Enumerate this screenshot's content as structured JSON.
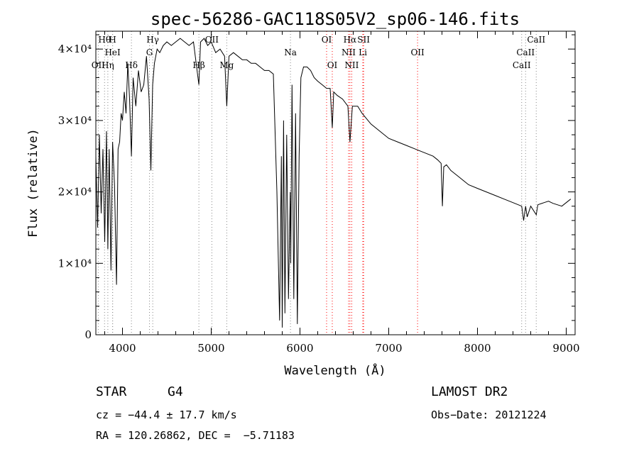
{
  "chart_data": {
    "type": "line",
    "title": "spec-56286-GAC118S05V2_sp06-146.fits",
    "xlabel": "Wavelength (Å)",
    "ylabel": "Flux (relative)",
    "xlim": [
      3700,
      9100
    ],
    "ylim": [
      0,
      42500
    ],
    "xticks": [
      4000,
      5000,
      6000,
      7000,
      8000,
      9000
    ],
    "yticks": [
      {
        "value": 0,
        "label": "0"
      },
      {
        "value": 10000,
        "label": "1×10⁴"
      },
      {
        "value": 20000,
        "label": "2×10⁴"
      },
      {
        "value": 30000,
        "label": "3×10⁴"
      },
      {
        "value": 40000,
        "label": "4×10⁴"
      }
    ],
    "grid": false,
    "series": [
      {
        "x": [
          3700,
          3720,
          3740,
          3760,
          3780,
          3800,
          3820,
          3835,
          3850,
          3870,
          3889,
          3910,
          3933,
          3950,
          3968,
          3985,
          4000,
          4020,
          4040,
          4060,
          4080,
          4101,
          4120,
          4150,
          4180,
          4210,
          4240,
          4270,
          4300,
          4320,
          4340,
          4360,
          4390,
          4420,
          4460,
          4500,
          4550,
          4600,
          4650,
          4700,
          4750,
          4800,
          4861,
          4880,
          4920,
          4960,
          5000,
          5050,
          5100,
          5150,
          5175,
          5200,
          5250,
          5300,
          5350,
          5400,
          5450,
          5500,
          5550,
          5600,
          5650,
          5700,
          5740,
          5770,
          5790,
          5800,
          5815,
          5830,
          5850,
          5870,
          5890,
          5896,
          5910,
          5930,
          5950,
          5970,
          5990,
          6010,
          6040,
          6080,
          6120,
          6160,
          6200,
          6250,
          6300,
          6340,
          6364,
          6380,
          6420,
          6480,
          6540,
          6563,
          6590,
          6650,
          6700,
          6800,
          6900,
          7000,
          7100,
          7200,
          7300,
          7400,
          7500,
          7550,
          7590,
          7605,
          7620,
          7650,
          7700,
          7800,
          7900,
          8000,
          8100,
          8200,
          8300,
          8400,
          8498,
          8520,
          8542,
          8560,
          8600,
          8662,
          8680,
          8750,
          8800,
          8850,
          8900,
          8950,
          9000,
          9050
        ],
        "y": [
          25000,
          15000,
          28000,
          17000,
          26000,
          13000,
          28500,
          12000,
          26000,
          9000,
          27000,
          21000,
          7000,
          26000,
          27000,
          31000,
          30000,
          34000,
          31000,
          38000,
          33000,
          25000,
          36000,
          32000,
          37000,
          34000,
          35000,
          39000,
          33000,
          23000,
          35000,
          38000,
          40000,
          39500,
          40500,
          41000,
          40500,
          41000,
          41500,
          41000,
          40500,
          41000,
          35000,
          41000,
          41500,
          40500,
          41000,
          39500,
          40000,
          39000,
          32000,
          39000,
          39500,
          39000,
          38500,
          38500,
          38000,
          38000,
          37500,
          37000,
          37000,
          36500,
          20000,
          2000,
          25000,
          1000,
          30000,
          3000,
          28000,
          5000,
          20000,
          10000,
          35000,
          5000,
          31000,
          1500,
          25000,
          36000,
          37500,
          37500,
          37000,
          36000,
          35500,
          35000,
          34500,
          34500,
          29000,
          34000,
          33500,
          33000,
          32000,
          27000,
          32000,
          32000,
          31000,
          29500,
          28500,
          27500,
          27000,
          26500,
          26000,
          25500,
          25000,
          24500,
          24000,
          18000,
          23500,
          23800,
          23000,
          22000,
          21000,
          20500,
          20000,
          19500,
          19000,
          18500,
          18000,
          16000,
          18000,
          16500,
          18000,
          16800,
          18200,
          18500,
          18700,
          18400,
          18200,
          18000,
          18500,
          19000
        ]
      }
    ],
    "lines": [
      {
        "label": "Hθ",
        "wave": 3798,
        "row": 0
      },
      {
        "label": "H",
        "wave": 3889,
        "row": 0
      },
      {
        "label": "Hγ",
        "wave": 4341,
        "row": 0
      },
      {
        "label": "OII",
        "wave": 5007,
        "row": 0
      },
      {
        "label": "OI",
        "wave": 6300,
        "row": 0
      },
      {
        "label": "Hα",
        "wave": 6563,
        "row": 0
      },
      {
        "label": "SII",
        "wave": 6717,
        "row": 0
      },
      {
        "label": "CaII",
        "wave": 8662,
        "row": 0
      },
      {
        "label": "HeI",
        "wave": 3889,
        "row": 1
      },
      {
        "label": "G",
        "wave": 4304,
        "row": 1
      },
      {
        "label": "Na",
        "wave": 5893,
        "row": 1
      },
      {
        "label": "NII",
        "wave": 6548,
        "row": 1
      },
      {
        "label": "Li",
        "wave": 6708,
        "row": 1
      },
      {
        "label": "OII",
        "wave": 7325,
        "row": 1
      },
      {
        "label": "CaII",
        "wave": 8542,
        "row": 1
      },
      {
        "label": "OII",
        "wave": 3727,
        "row": 2
      },
      {
        "label": "Hη",
        "wave": 3835,
        "row": 2
      },
      {
        "label": "Hδ",
        "wave": 4101,
        "row": 2
      },
      {
        "label": "Hβ",
        "wave": 4861,
        "row": 2
      },
      {
        "label": "Mg",
        "wave": 5175,
        "row": 2
      },
      {
        "label": "OI",
        "wave": 6364,
        "row": 2
      },
      {
        "label": "NII",
        "wave": 6583,
        "row": 2
      },
      {
        "label": "CaII",
        "wave": 8498,
        "row": 2
      }
    ],
    "colors": {
      "spectrum": "#000000",
      "emission_marker": "#ff0000",
      "absorption_marker": "#888888"
    }
  },
  "info": {
    "class_label": "STAR",
    "subclass": "G4",
    "cz": "cz = −44.4 ± 17.7 km/s",
    "radec": "RA = 120.26862, DEC =  −5.71183",
    "survey": "LAMOST DR2",
    "obs_date": "Obs−Date: 20121224"
  }
}
